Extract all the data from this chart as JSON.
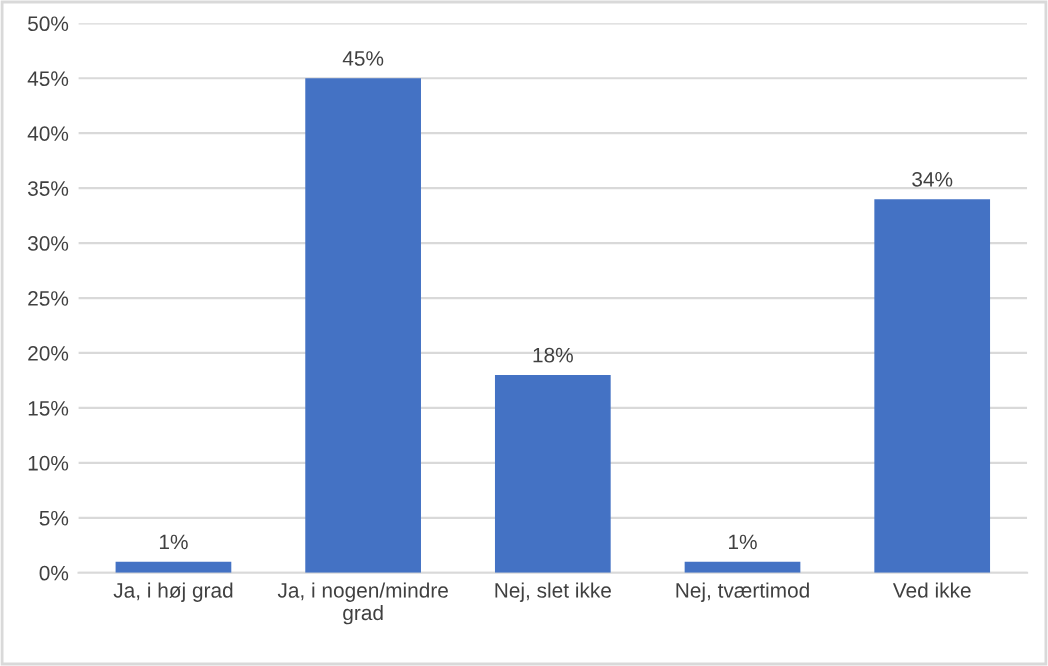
{
  "chart_data": {
    "type": "bar",
    "categories": [
      "Ja, i høj grad",
      "Ja, i nogen/mindre\ngrad",
      "Nej, slet ikke",
      "Nej, tværtimod",
      "Ved ikke"
    ],
    "values": [
      1,
      45,
      18,
      1,
      34
    ],
    "value_labels": [
      "1%",
      "45%",
      "18%",
      "1%",
      "34%"
    ],
    "color": "#4472c4",
    "ylim": [
      0,
      50
    ],
    "yticks": [
      {
        "value": 0,
        "label": "0%"
      },
      {
        "value": 5,
        "label": "5%"
      },
      {
        "value": 10,
        "label": "10%"
      },
      {
        "value": 15,
        "label": "15%"
      },
      {
        "value": 20,
        "label": "20%"
      },
      {
        "value": 25,
        "label": "25%"
      },
      {
        "value": 30,
        "label": "30%"
      },
      {
        "value": 35,
        "label": "35%"
      },
      {
        "value": 40,
        "label": "40%"
      },
      {
        "value": 45,
        "label": "45%"
      },
      {
        "value": 50,
        "label": "50%"
      }
    ],
    "grid": "y",
    "legend": false
  }
}
